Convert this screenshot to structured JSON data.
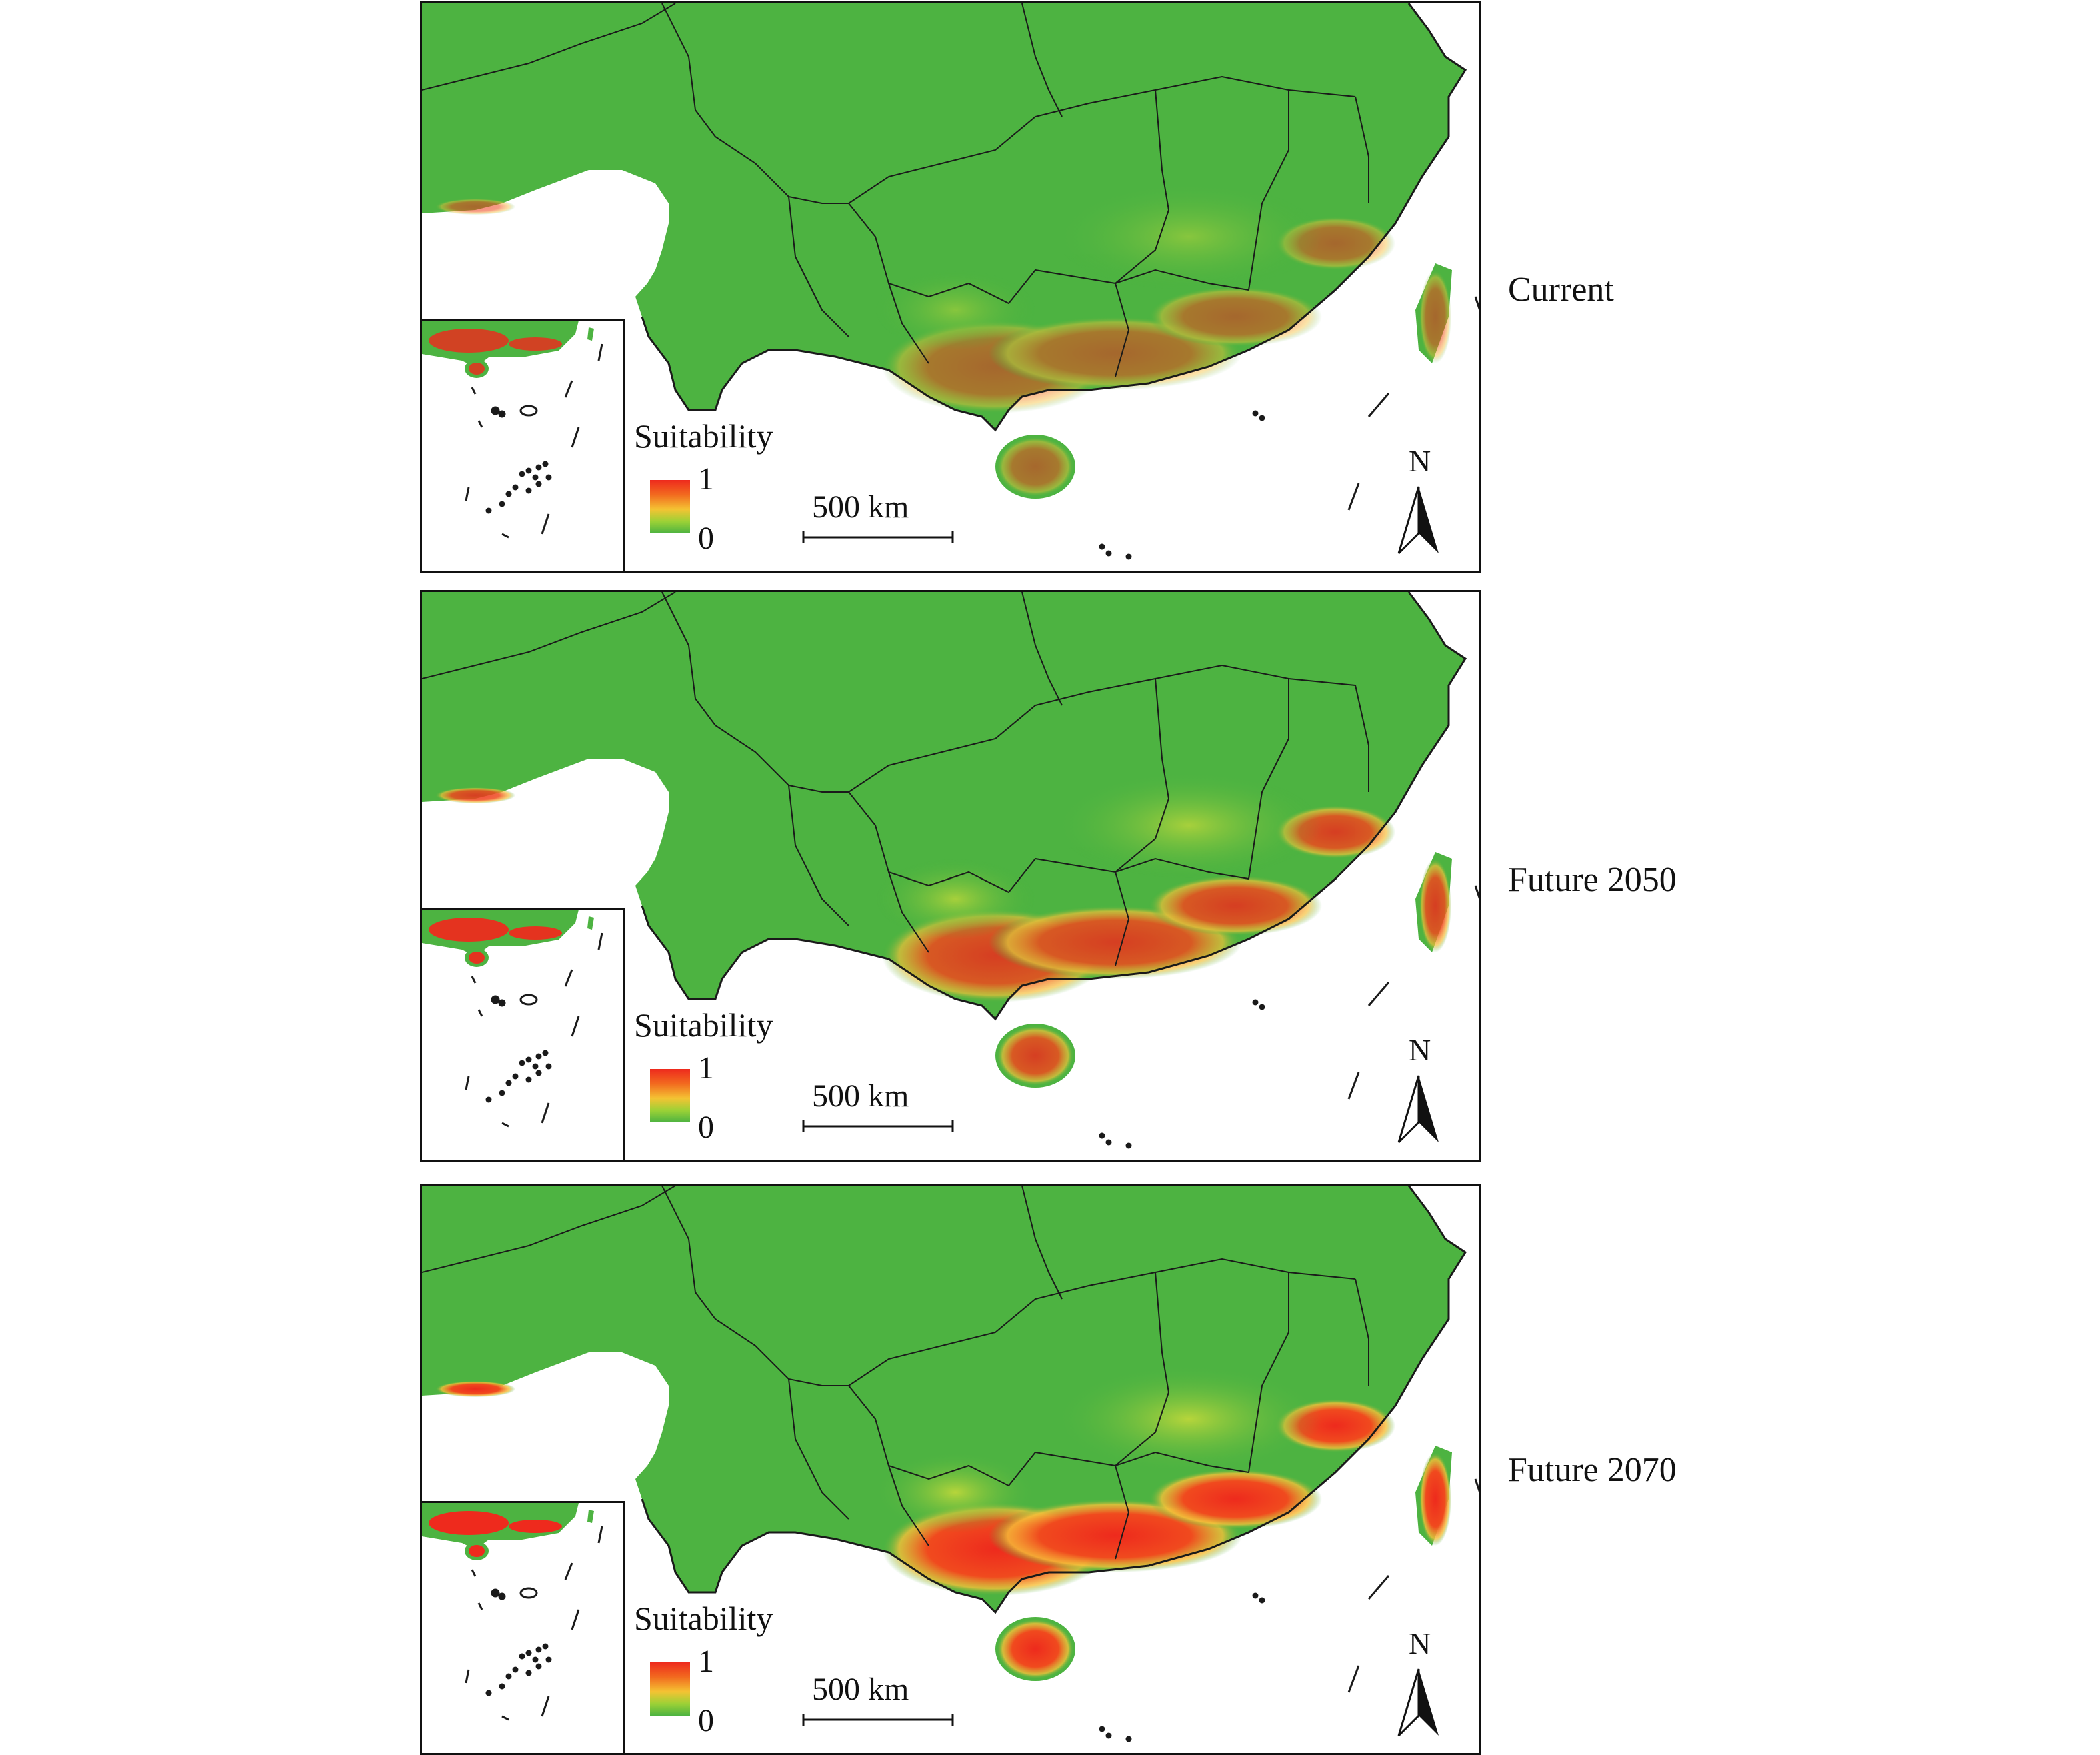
{
  "panels": [
    {
      "label": "Current",
      "intensity": 0.55
    },
    {
      "label": "Future 2050",
      "intensity": 0.85
    },
    {
      "label": "Future 2070",
      "intensity": 1.0
    }
  ],
  "legend": {
    "title": "Suitability",
    "max": "1",
    "min": "0"
  },
  "scale": {
    "label": "500 km"
  },
  "north": {
    "label": "N"
  },
  "colors": {
    "low": "#4db341",
    "mid": "#f4c333",
    "high": "#ee2a1d",
    "boundary": "#1a1a1a"
  }
}
